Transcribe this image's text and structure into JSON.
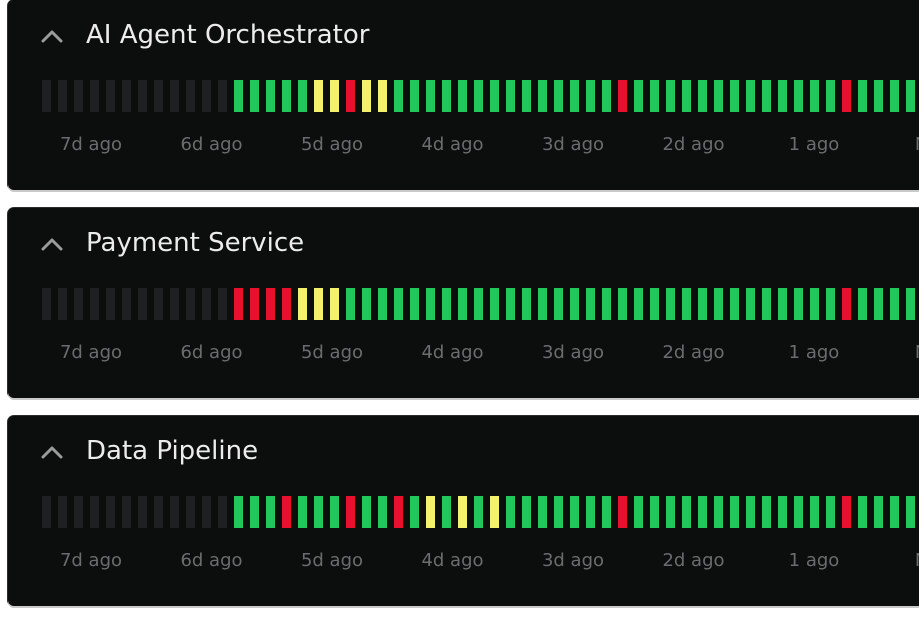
{
  "panels": [
    {
      "title": "AI Agent Orchestrator",
      "bars": [
        "#1e2022",
        "#1e2022",
        "#1e2022",
        "#1e2022",
        "#1e2022",
        "#1e2022",
        "#1e2022",
        "#1e2022",
        "#1e2022",
        "#1e2022",
        "#1e2022",
        "#1e2022",
        "#22c55e",
        "#22c55e",
        "#22c55e",
        "#22c55e",
        "#22c55e",
        "#f5f06b",
        "#f5f06b",
        "#e8112d",
        "#f5f06b",
        "#f5f06b",
        "#22c55e",
        "#22c55e",
        "#22c55e",
        "#22c55e",
        "#22c55e",
        "#22c55e",
        "#22c55e",
        "#22c55e",
        "#22c55e",
        "#22c55e",
        "#22c55e",
        "#22c55e",
        "#22c55e",
        "#22c55e",
        "#e8112d",
        "#22c55e",
        "#22c55e",
        "#22c55e",
        "#22c55e",
        "#22c55e",
        "#22c55e",
        "#22c55e",
        "#22c55e",
        "#22c55e",
        "#22c55e",
        "#22c55e",
        "#22c55e",
        "#22c55e",
        "#e8112d",
        "#22c55e",
        "#22c55e",
        "#22c55e",
        "#22c55e"
      ],
      "labels": [
        "7d ago",
        "6d ago",
        "5d ago",
        "4d ago",
        "3d ago",
        "2d ago",
        "1 ago",
        "Now"
      ]
    },
    {
      "title": "Payment Service",
      "bars": [
        "#1e2022",
        "#1e2022",
        "#1e2022",
        "#1e2022",
        "#1e2022",
        "#1e2022",
        "#1e2022",
        "#1e2022",
        "#1e2022",
        "#1e2022",
        "#1e2022",
        "#1e2022",
        "#e8112d",
        "#e8112d",
        "#e8112d",
        "#e8112d",
        "#f5f06b",
        "#f5f06b",
        "#f5f06b",
        "#22c55e",
        "#22c55e",
        "#22c55e",
        "#22c55e",
        "#22c55e",
        "#22c55e",
        "#22c55e",
        "#22c55e",
        "#22c55e",
        "#22c55e",
        "#22c55e",
        "#22c55e",
        "#22c55e",
        "#22c55e",
        "#22c55e",
        "#22c55e",
        "#22c55e",
        "#22c55e",
        "#22c55e",
        "#22c55e",
        "#22c55e",
        "#22c55e",
        "#22c55e",
        "#22c55e",
        "#22c55e",
        "#22c55e",
        "#22c55e",
        "#22c55e",
        "#22c55e",
        "#22c55e",
        "#22c55e",
        "#e8112d",
        "#22c55e",
        "#22c55e",
        "#22c55e",
        "#22c55e"
      ],
      "labels": [
        "7d ago",
        "6d ago",
        "5d ago",
        "4d ago",
        "3d ago",
        "2d ago",
        "1 ago",
        "Now"
      ]
    },
    {
      "title": "Data Pipeline",
      "bars": [
        "#1e2022",
        "#1e2022",
        "#1e2022",
        "#1e2022",
        "#1e2022",
        "#1e2022",
        "#1e2022",
        "#1e2022",
        "#1e2022",
        "#1e2022",
        "#1e2022",
        "#1e2022",
        "#22c55e",
        "#22c55e",
        "#22c55e",
        "#e8112d",
        "#22c55e",
        "#22c55e",
        "#22c55e",
        "#e8112d",
        "#22c55e",
        "#22c55e",
        "#e8112d",
        "#22c55e",
        "#f5f06b",
        "#22c55e",
        "#f5f06b",
        "#22c55e",
        "#f5f06b",
        "#22c55e",
        "#22c55e",
        "#22c55e",
        "#22c55e",
        "#22c55e",
        "#22c55e",
        "#22c55e",
        "#e8112d",
        "#22c55e",
        "#22c55e",
        "#22c55e",
        "#22c55e",
        "#22c55e",
        "#22c55e",
        "#22c55e",
        "#22c55e",
        "#22c55e",
        "#22c55e",
        "#22c55e",
        "#22c55e",
        "#22c55e",
        "#e8112d",
        "#22c55e",
        "#22c55e",
        "#22c55e",
        "#22c55e"
      ],
      "labels": [
        "7d ago",
        "6d ago",
        "5d ago",
        "4d ago",
        "3d ago",
        "2d ago",
        "1 ago",
        "Now"
      ]
    }
  ]
}
